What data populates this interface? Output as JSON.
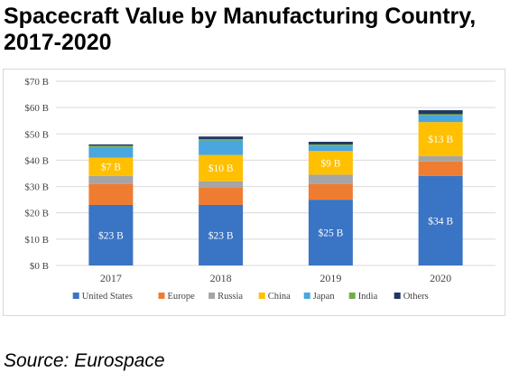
{
  "title": "Spacecraft Value by Manufacturing Country, 2017-2020",
  "source": "Source: Eurospace",
  "chart_data": {
    "type": "bar",
    "stacked": true,
    "categories": [
      "2017",
      "2018",
      "2019",
      "2020"
    ],
    "ylim": [
      0,
      70
    ],
    "yticks": [
      "$0 B",
      "$10 B",
      "$20 B",
      "$30 B",
      "$40 B",
      "$50 B",
      "$60 B",
      "$70 B"
    ],
    "ytick_values": [
      0,
      10,
      20,
      30,
      40,
      50,
      60,
      70
    ],
    "grid": true,
    "legend_position": "bottom",
    "series": [
      {
        "name": "United States",
        "color": "#3a74c4",
        "values": [
          23,
          23,
          25,
          34
        ],
        "labels": [
          "$23 B",
          "$23 B",
          "$25 B",
          "$34 B"
        ]
      },
      {
        "name": "Europe",
        "color": "#ee7d31",
        "values": [
          8,
          6.5,
          6,
          5.5
        ],
        "labels": [
          "",
          "",
          "",
          ""
        ]
      },
      {
        "name": "Russia",
        "color": "#a5a5a5",
        "values": [
          3,
          2.5,
          3.5,
          2
        ],
        "labels": [
          "",
          "",
          "",
          ""
        ]
      },
      {
        "name": "China",
        "color": "#fec000",
        "values": [
          7,
          10,
          9,
          13
        ],
        "labels": [
          "$7 B",
          "$10 B",
          "$9 B",
          "$13 B"
        ]
      },
      {
        "name": "Japan",
        "color": "#4aa6de",
        "values": [
          4,
          5.5,
          2,
          2.5
        ],
        "labels": [
          "",
          "",
          "",
          ""
        ]
      },
      {
        "name": "India",
        "color": "#70ad47",
        "values": [
          0.5,
          0.5,
          0.5,
          0.5
        ],
        "labels": [
          "",
          "",
          "",
          ""
        ]
      },
      {
        "name": "Others",
        "color": "#203764",
        "values": [
          0.5,
          1,
          1,
          1.5
        ],
        "labels": [
          "",
          "",
          "",
          ""
        ]
      }
    ]
  }
}
